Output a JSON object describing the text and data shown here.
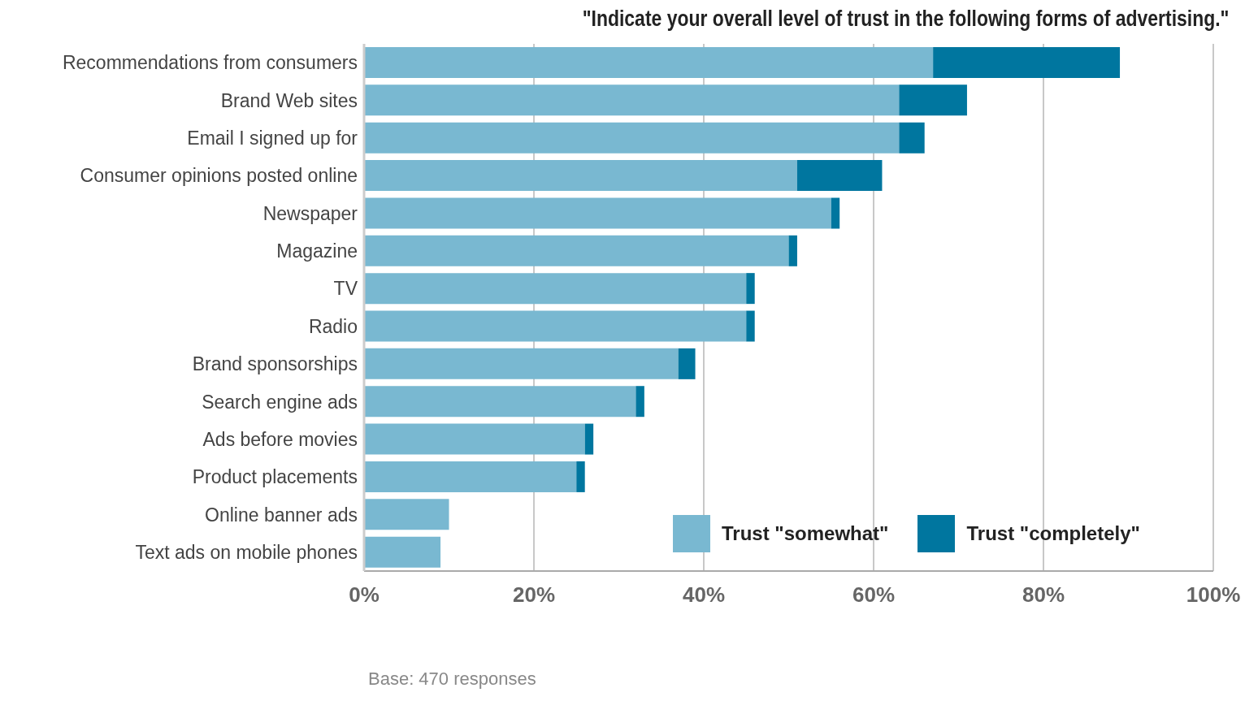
{
  "chart_data": {
    "type": "bar",
    "orientation": "horizontal",
    "stacked": true,
    "title": "\"Indicate your overall level of trust in the following forms of advertising.\"",
    "categories": [
      "Recommendations from consumers",
      "Brand Web sites",
      "Email I signed up for",
      "Consumer opinions posted online",
      "Newspaper",
      "Magazine",
      "TV",
      "Radio",
      "Brand sponsorships",
      "Search engine ads",
      "Ads before movies",
      "Product placements",
      "Online banner ads",
      "Text ads on mobile phones"
    ],
    "series": [
      {
        "name": "Trust \"somewhat\"",
        "color": "#79b8d1",
        "values": [
          67,
          63,
          63,
          51,
          55,
          50,
          45,
          45,
          37,
          32,
          26,
          25,
          10,
          9
        ]
      },
      {
        "name": "Trust \"completely\"",
        "color": "#00769f",
        "values": [
          22,
          8,
          3,
          10,
          1,
          1,
          1,
          1,
          2,
          1,
          1,
          1,
          0,
          0
        ]
      }
    ],
    "xlim": [
      0,
      100
    ],
    "xticks": [
      {
        "value": 0,
        "label": "0%"
      },
      {
        "value": 20,
        "label": "20%"
      },
      {
        "value": 40,
        "label": "40%"
      },
      {
        "value": 60,
        "label": "60%"
      },
      {
        "value": 80,
        "label": "80%"
      },
      {
        "value": 100,
        "label": "100%"
      }
    ],
    "grid": "x",
    "legend": "bottom right",
    "annotations": [
      "Base: 470 responses"
    ]
  }
}
